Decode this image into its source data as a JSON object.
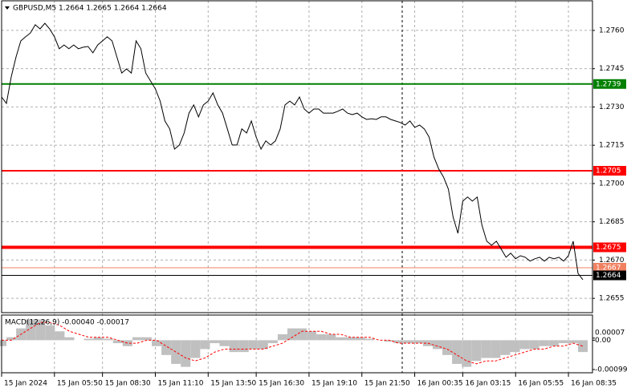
{
  "chart_data": [
    {
      "type": "line",
      "title": "GBPUSD,M5  1.2664 1.2665 1.2664 1.2664",
      "categories": [
        "15 Jan 2024",
        null,
        null,
        null,
        null,
        null,
        null,
        null,
        null,
        null,
        null,
        "15 Jan 05:50",
        null,
        null,
        null,
        null,
        null,
        null,
        null,
        null,
        null,
        "15 Jan 08:30",
        null,
        null,
        null,
        null,
        null,
        null,
        null,
        null,
        null,
        null,
        "15 Jan 11:10",
        null,
        null,
        null,
        null,
        null,
        null,
        null,
        null,
        null,
        null,
        "15 Jan 13:50",
        null,
        null,
        null,
        null,
        null,
        null,
        null,
        null,
        null,
        "15 Jan 16:30",
        null,
        null,
        null,
        null,
        null,
        null,
        null,
        null,
        null,
        null,
        "15 Jan 19:10",
        null,
        null,
        null,
        null,
        null,
        null,
        null,
        null,
        null,
        null,
        "15 Jan 21:50",
        null,
        null,
        null,
        null,
        null,
        null,
        null,
        null,
        null,
        null,
        "16 Jan 00:35",
        null,
        null,
        null,
        null,
        null,
        null,
        null,
        null,
        null,
        "16 Jan 03:15",
        null,
        null,
        null,
        null,
        null,
        null,
        null,
        null,
        null,
        null,
        "16 Jan 05:55",
        null,
        null,
        null,
        null,
        null,
        null,
        null,
        null,
        null,
        null,
        "16 Jan 08:35",
        null,
        null,
        null
      ],
      "values": [
        1.27339,
        1.27314,
        1.27418,
        1.27496,
        1.27559,
        1.27575,
        1.2759,
        1.27622,
        1.27606,
        1.27628,
        1.27606,
        1.27575,
        1.27528,
        1.27543,
        1.27528,
        1.27543,
        1.27528,
        1.27534,
        1.27537,
        1.27512,
        1.27543,
        1.27559,
        1.27575,
        1.27559,
        1.27496,
        1.27433,
        1.27449,
        1.27433,
        1.27559,
        1.27528,
        1.27433,
        1.27402,
        1.27371,
        1.27323,
        1.27245,
        1.27214,
        1.27135,
        1.27151,
        1.27198,
        1.27276,
        1.27308,
        1.27261,
        1.27308,
        1.27323,
        1.27355,
        1.27308,
        1.27276,
        1.27214,
        1.27151,
        1.27151,
        1.27214,
        1.27198,
        1.27245,
        1.27182,
        1.27135,
        1.27167,
        1.27151,
        1.27167,
        1.27214,
        1.27308,
        1.27323,
        1.27308,
        1.27339,
        1.27292,
        1.27276,
        1.27292,
        1.27292,
        1.27276,
        1.27276,
        1.27276,
        1.27283,
        1.27292,
        1.27276,
        1.2727,
        1.27276,
        1.27261,
        1.27251,
        1.27254,
        1.27251,
        1.27261,
        1.27261,
        1.27251,
        1.27245,
        1.27239,
        1.27229,
        1.27245,
        1.2722,
        1.27229,
        1.27214,
        1.27182,
        1.27104,
        1.27057,
        1.27025,
        1.26978,
        1.26868,
        1.26805,
        1.26931,
        1.26947,
        1.26931,
        1.26947,
        1.26837,
        1.26774,
        1.26758,
        1.26774,
        1.26743,
        1.26711,
        1.26727,
        1.26705,
        1.26717,
        1.26711,
        1.26696,
        1.26705,
        1.26711,
        1.26696,
        1.26711,
        1.26705,
        1.26711,
        1.26696,
        1.26717,
        1.26774,
        1.26648,
        1.26623
      ],
      "color": "#000000",
      "ylim": [
        1.26494,
        1.27716
      ],
      "yticks": [
        {
          "value": 1.276,
          "label": "1.2760"
        },
        {
          "value": 1.2745,
          "label": "1.2745"
        },
        {
          "value": 1.273,
          "label": "1.2730"
        },
        {
          "value": 1.2715,
          "label": "1.2715"
        },
        {
          "value": 1.27,
          "label": "1.2700"
        },
        {
          "value": 1.2685,
          "label": "1.2685"
        },
        {
          "value": 1.267,
          "label": "1.2670"
        },
        {
          "value": 1.2655,
          "label": "1.2655"
        }
      ],
      "grid": true,
      "levels": [
        {
          "value": 1.2739,
          "color": "#008000",
          "width": 2
        },
        {
          "value": 1.2705,
          "color": "#ff0000",
          "width": 2
        },
        {
          "value": 1.2675,
          "color": "#ff0000",
          "width": 4
        },
        {
          "value": 1.2667,
          "color": "#f08060",
          "width": 1
        },
        {
          "value": 1.2664,
          "color": "#000000",
          "width": 1
        }
      ]
    },
    {
      "type": "macd",
      "title": "MACD(12,26,9) -0.00040 -0.00017",
      "series": [
        {
          "name": "MACD",
          "color": "#c0c0c0",
          "values": [
            -0.0002,
            0.0001,
            0.0004,
            0.0007,
            0.0007,
            0.0005,
            0.0003,
            0.0001,
            0,
            5e-05,
            0.0001,
            5e-05,
            -0.0001,
            -0.0002,
            0.0001,
            0.0001,
            -0.0002,
            -0.0005,
            -0.0008,
            -0.0009,
            -0.0006,
            -0.0003,
            -0.0001,
            -0.0002,
            -0.0004,
            -0.0004,
            -0.0003,
            -0.0003,
            -0.0001,
            0.0002,
            0.0004,
            0.0004,
            0.0003,
            0.0002,
            0.0002,
            0.0001,
            0.0001,
            0.0001,
            5e-05,
            0,
            -5e-05,
            -0.0001,
            -0.0001,
            -0.0001,
            -0.0002,
            -0.0003,
            -0.0005,
            -0.0008,
            -0.0009,
            -0.0007,
            -0.0006,
            -0.0006,
            -0.0005,
            -0.0004,
            -0.0003,
            -0.0003,
            -0.0002,
            -0.0002,
            -0.0001,
            -0.0001,
            -0.0004
          ]
        },
        {
          "name": "Signal",
          "color": "#ff0000",
          "values": [
            0,
            0,
            0.0002,
            0.0004,
            0.0006,
            0.0006,
            0.0005,
            0.0003,
            0.0002,
            0.0001,
            0.0001,
            0.0001,
            0,
            -0.0001,
            -0.0001,
            0,
            0,
            -0.0002,
            -0.0004,
            -0.0006,
            -0.0007,
            -0.0006,
            -0.0004,
            -0.0003,
            -0.0003,
            -0.0003,
            -0.0003,
            -0.0003,
            -0.0002,
            -0.0001,
            0.0001,
            0.0003,
            0.0003,
            0.0003,
            0.0002,
            0.0002,
            0.0001,
            0.0001,
            0.0001,
            0,
            0,
            -0.0001,
            -0.0001,
            -0.0001,
            -0.0001,
            -0.0002,
            -0.0003,
            -0.0005,
            -0.0007,
            -0.0008,
            -0.0007,
            -0.0007,
            -0.0006,
            -0.0005,
            -0.0004,
            -0.0003,
            -0.0003,
            -0.0002,
            -0.0002,
            -0.0001,
            -0.0002
          ]
        }
      ],
      "ylim": [
        -0.0011,
        0.00085
      ],
      "yticks": [
        {
          "value": 7e-05,
          "label": "0.00007"
        },
        {
          "value": 0,
          "label": "0.00"
        },
        {
          "value": -0.00099,
          "label": "-0.00099"
        }
      ]
    }
  ]
}
